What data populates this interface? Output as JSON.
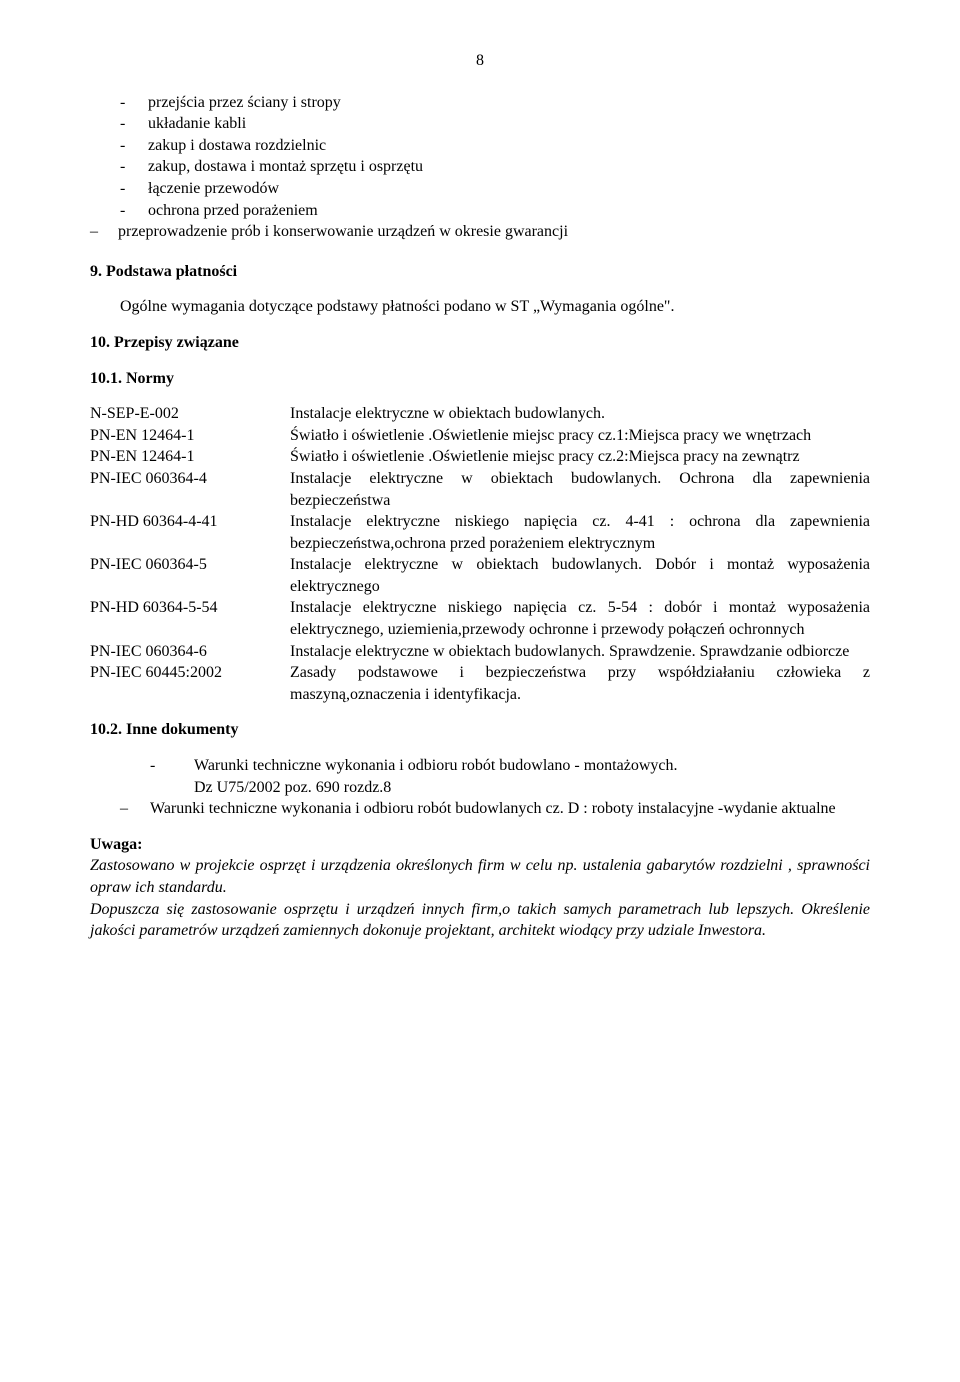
{
  "pageNumber": "8",
  "topList": [
    "przejścia przez ściany i stropy",
    "układanie kabli",
    "zakup i dostawa rozdzielnic",
    "zakup, dostawa i montaż sprzętu i osprzętu",
    "łączenie przewodów",
    "ochrona przed porażeniem"
  ],
  "topListLast": "przeprowadzenie prób i konserwowanie urządzeń w okresie gwarancji",
  "section9": {
    "heading": "9.     Podstawa płatności",
    "body": "Ogólne wymagania dotyczące podstawy płatności podano w ST „Wymagania ogólne\"."
  },
  "section10": {
    "heading": "10.   Przepisy związane"
  },
  "normsHeading": "10.1.   Normy",
  "norms": [
    {
      "code": "N-SEP-E-002",
      "desc": "Instalacje elektryczne w obiektach budowlanych."
    },
    {
      "code": "PN-EN 12464-1",
      "desc": "Światło i oświetlenie .Oświetlenie miejsc pracy cz.1:Miejsca pracy we wnętrzach"
    },
    {
      "code": "PN-EN 12464-1",
      "desc": "Światło i oświetlenie .Oświetlenie miejsc pracy cz.2:Miejsca pracy na zewnątrz"
    },
    {
      "code": "PN-IEC 060364-4",
      "desc": "Instalacje elektryczne w obiektach budowlanych. Ochrona dla zapewnienia bezpieczeństwa"
    },
    {
      "code": "PN-HD 60364-4-41",
      "desc": "Instalacje elektryczne niskiego napięcia cz. 4-41 : ochrona dla zapewnienia bezpieczeństwa,ochrona przed porażeniem elektrycznym"
    },
    {
      "code": "PN-IEC 060364-5",
      "desc": "Instalacje elektryczne w obiektach budowlanych. Dobór i montaż wyposażenia elektrycznego"
    },
    {
      "code": "PN-HD 60364-5-54",
      "desc": "Instalacje elektryczne niskiego napięcia cz. 5-54 : dobór i montaż wyposażenia elektrycznego, uziemienia,przewody ochronne i przewody połączeń ochronnych"
    },
    {
      "code": "PN-IEC 060364-6",
      "desc": "Instalacje elektryczne w obiektach budowlanych. Sprawdzenie. Sprawdzanie odbiorcze"
    },
    {
      "code": "PN-IEC 60445:2002",
      "desc": "Zasady podstawowe i bezpieczeństwa przy współdziałaniu człowieka z maszyną,oznaczenia i identyfikacja."
    }
  ],
  "docsHeading": "10.2.   Inne dokumenty",
  "docs1": "Warunki techniczne wykonania i odbioru robót budowlano - montażowych.",
  "docs1b": "Dz U75/2002 poz. 690 rozdz.8",
  "docs2": "Warunki techniczne wykonania i odbioru robót budowlanych cz. D : roboty instalacyjne -wydanie  aktualne",
  "uwaga": {
    "heading": "Uwaga:",
    "p1": "Zastosowano w projekcie osprzęt i urządzenia określonych firm w celu np. ustalenia gabarytów rozdzielni , sprawności opraw ich standardu.",
    "p2": "Dopuszcza się zastosowanie osprzętu i urządzeń innych firm,o takich samych parametrach lub lepszych. Określenie jakości parametrów urządzeń zamiennych dokonuje projektant, architekt wiodący przy udziale Inwestora."
  }
}
